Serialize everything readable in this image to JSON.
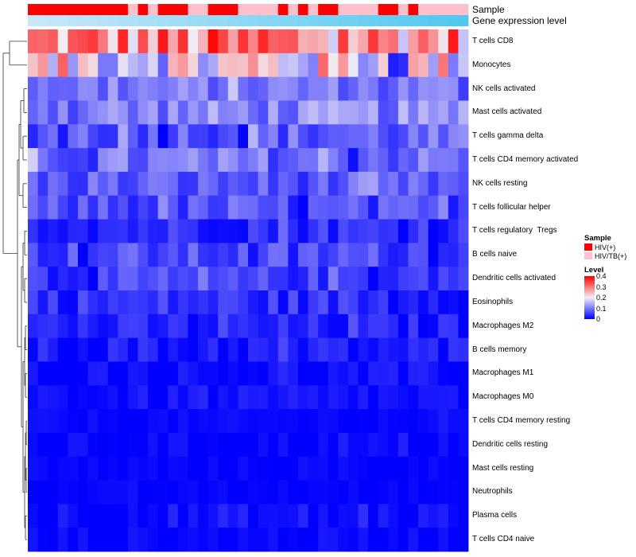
{
  "chart_data": {
    "type": "heatmap",
    "annotation_rows": [
      {
        "name": "Sample",
        "label": "Sample"
      },
      {
        "name": "Gene expression level",
        "label": "Gene expression level"
      }
    ],
    "rows": [
      "T cells CD8",
      "Monocytes",
      "NK cells activated",
      "Mast cells activated",
      "T cells gamma delta",
      "T cells CD4 memory activated",
      "NK cells resting",
      "T cells follicular helper",
      "T cells regulatory  Tregs",
      "B cells naive",
      "Dendritic cells activated",
      "Eosinophils",
      "Macrophages M2",
      "B cells memory",
      "Macrophages M1",
      "Macrophages M0",
      "T cells CD4 memory resting",
      "Dendritic cells resting",
      "Mast cells resting",
      "Neutrophils",
      "Plasma cells",
      "T cells CD4 naive"
    ],
    "n_columns": 44,
    "sample_groups": "HHHHHHHHHHTHTHHHTTHHHTTTTHTHTHHTTTTHHTHTTTTT",
    "row_base_levels": [
      0.28,
      0.2,
      0.1,
      0.11,
      0.08,
      0.09,
      0.07,
      0.06,
      0.04,
      0.06,
      0.05,
      0.04,
      0.025,
      0.02,
      0.01,
      0.01,
      0.005,
      0.005,
      0.003,
      0.002,
      0.01,
      0.005
    ],
    "row_spread": [
      0.12,
      0.12,
      0.04,
      0.05,
      0.05,
      0.05,
      0.04,
      0.04,
      0.035,
      0.04,
      0.035,
      0.035,
      0.03,
      0.03,
      0.02,
      0.02,
      0.01,
      0.015,
      0.01,
      0.008,
      0.025,
      0.015
    ],
    "legend": {
      "sample_title": "Sample",
      "sample_entries": [
        {
          "label": "HIV(+)",
          "color": "#ff0000"
        },
        {
          "label": "HIV/TB(+)",
          "color": "#ffc0cb"
        }
      ],
      "level_title": "Level",
      "level_ticks": [
        "0.4",
        "0.3",
        "0.2",
        "0.1",
        "0"
      ],
      "level_range": [
        0,
        0.4
      ]
    },
    "colors": {
      "low": "#0000ff",
      "mid": "#f2eef5",
      "high": "#ff0000",
      "gene_expr_low": "#c8e8f8",
      "gene_expr_high": "#4fc8f0"
    }
  }
}
